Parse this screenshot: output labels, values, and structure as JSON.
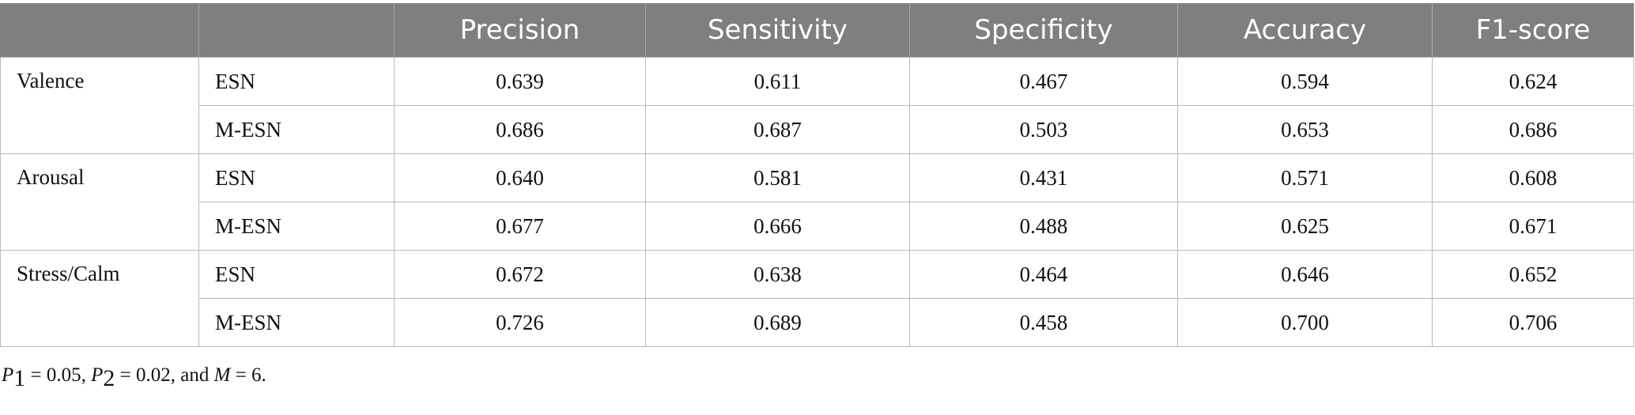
{
  "table": {
    "headers": [
      "",
      "",
      "Precision",
      "Sensitivity",
      "Specificity",
      "Accuracy",
      "F1-score"
    ],
    "groups": [
      {
        "label": "Valence",
        "rows": [
          {
            "model": "ESN",
            "values": [
              "0.639",
              "0.611",
              "0.467",
              "0.594",
              "0.624"
            ]
          },
          {
            "model": "M-ESN",
            "values": [
              "0.686",
              "0.687",
              "0.503",
              "0.653",
              "0.686"
            ]
          }
        ]
      },
      {
        "label": "Arousal",
        "rows": [
          {
            "model": "ESN",
            "values": [
              "0.640",
              "0.581",
              "0.431",
              "0.571",
              "0.608"
            ]
          },
          {
            "model": "M-ESN",
            "values": [
              "0.677",
              "0.666",
              "0.488",
              "0.625",
              "0.671"
            ]
          }
        ]
      },
      {
        "label": "Stress/Calm",
        "rows": [
          {
            "model": "ESN",
            "values": [
              "0.672",
              "0.638",
              "0.464",
              "0.646",
              "0.652"
            ]
          },
          {
            "model": "M-ESN",
            "values": [
              "0.726",
              "0.689",
              "0.458",
              "0.700",
              "0.706"
            ]
          }
        ]
      }
    ]
  },
  "footnote": {
    "p1_sym": "P",
    "p1_sub": "1",
    "p1_val": " = 0.05, ",
    "p2_sym": "P",
    "p2_sub": "2",
    "p2_val": " = 0.02, and ",
    "m_sym": "M",
    "m_val": " = 6."
  }
}
